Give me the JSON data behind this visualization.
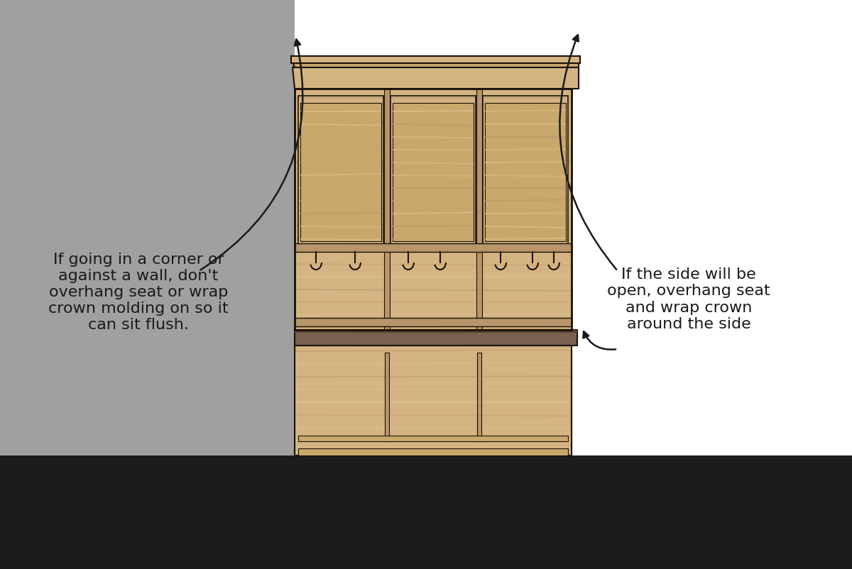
{
  "bg_left_color": "#a0a0a0",
  "bg_right_color": "#ffffff",
  "floor_color": "#1a1a1a",
  "wood_light": "#d4b483",
  "wood_medium": "#c9a86c",
  "wood_dark": "#b8956a",
  "wood_grain1": "#dfc090",
  "wood_grain2": "#c8a070",
  "seat_color": "#7a6050",
  "outline_color": "#1a1205",
  "text_left": "If going in a corner or\nagainst a wall, don't\noverhang seat or wrap\ncrown molding on so it\ncan sit flush.",
  "text_right": "If the side will be\nopen, overhang seat\nand wrap crown\naround the side",
  "font_size": 16,
  "title": ""
}
